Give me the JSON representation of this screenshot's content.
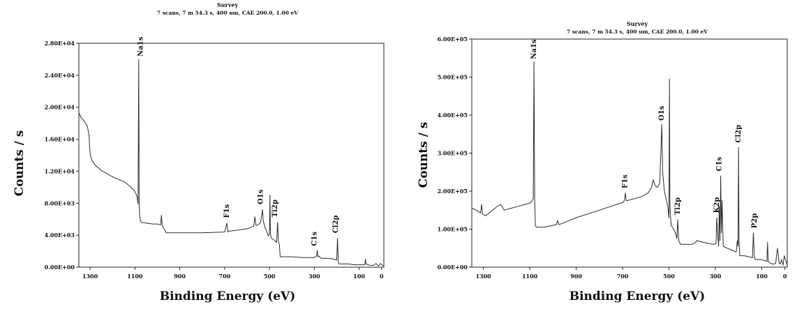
{
  "chart_data": [
    {
      "type": "line",
      "title": "Survey",
      "subtitle": "7 scans, 7 m 54.3 s, 400 um, CAE 200.0, 1.00 eV",
      "xlabel": "Binding Energy (eV)",
      "ylabel": "Counts / s",
      "xlim": [
        1350,
        -10
      ],
      "ylim": [
        0,
        28000
      ],
      "xticks": [
        1300,
        1100,
        900,
        700,
        500,
        300,
        100,
        0
      ],
      "xtick_labels": [
        "1300",
        "1100",
        "900",
        "700",
        "500",
        "300",
        "100",
        "0"
      ],
      "yticks": [
        0,
        4000,
        8000,
        12000,
        16000,
        20000,
        24000,
        28000
      ],
      "ytick_labels": [
        "0.00E+00",
        "4.00E+03",
        "8.00E+03",
        "1.20E+04",
        "1.60E+04",
        "2.00E+04",
        "2.40E+04",
        "2.80E+04"
      ],
      "grid": false,
      "series": [
        {
          "x": [
            1350,
            1340,
            1325,
            1312,
            1305,
            1300,
            1295,
            1288,
            1275,
            1250,
            1225,
            1200,
            1175,
            1150,
            1125,
            1100,
            1090,
            1086,
            1083,
            1081,
            1079,
            1076,
            1070,
            1050,
            1020,
            1000,
            985,
            982,
            978,
            960,
            900,
            800,
            700,
            690,
            686,
            684,
            680,
            650,
            600,
            580,
            570,
            565,
            560,
            550,
            540,
            535,
            531,
            528,
            525,
            520,
            505,
            500,
            498,
            496,
            494,
            490,
            480,
            468,
            464,
            460,
            456,
            452,
            440,
            400,
            350,
            300,
            290,
            287,
            284,
            280,
            270,
            230,
            215,
            205,
            200,
            197,
            193,
            190,
            170,
            150,
            120,
            100,
            75,
            72,
            70,
            60,
            45,
            35,
            25,
            15,
            5,
            -10
          ],
          "y": [
            19300,
            18700,
            18200,
            17600,
            16500,
            14200,
            13600,
            13200,
            12700,
            12100,
            11700,
            11300,
            11000,
            10700,
            10200,
            9500,
            8800,
            7900,
            26000,
            8000,
            6500,
            5800,
            5600,
            5500,
            5400,
            5400,
            5300,
            6500,
            5200,
            4300,
            4300,
            4300,
            4400,
            5500,
            4400,
            4500,
            4500,
            4600,
            4800,
            5000,
            5100,
            6300,
            5200,
            5300,
            5600,
            6500,
            7200,
            5800,
            5500,
            5000,
            3900,
            4200,
            9000,
            4500,
            3800,
            3600,
            3400,
            3100,
            5600,
            3200,
            2800,
            1300,
            1300,
            1300,
            1200,
            1200,
            1400,
            2100,
            1300,
            1400,
            1100,
            1100,
            1000,
            900,
            900,
            3600,
            600,
            400,
            400,
            400,
            300,
            300,
            300,
            1000,
            400,
            300,
            200,
            250,
            450,
            150,
            450,
            100
          ]
        }
      ],
      "annotations": [
        {
          "text": "Na1s",
          "x": 1075,
          "y": 26000
        },
        {
          "text": "F1s",
          "x": 690,
          "y": 5800
        },
        {
          "text": "O1s",
          "x": 540,
          "y": 7500
        },
        {
          "text": "Ti2p",
          "x": 475,
          "y": 5900
        },
        {
          "text": "C1s",
          "x": 300,
          "y": 2300
        },
        {
          "text": "Cl2p",
          "x": 205,
          "y": 3900
        }
      ]
    },
    {
      "type": "line",
      "title": "Survey",
      "subtitle": "7 scans, 7 m 54.3 s, 400 um, CAE 200.0, 1.00 eV",
      "xlabel": "Binding Energy (eV)",
      "ylabel": "Counts / s",
      "xlim": [
        1350,
        -10
      ],
      "ylim": [
        0,
        600000
      ],
      "xticks": [
        1300,
        1100,
        900,
        700,
        500,
        300,
        100,
        0
      ],
      "xtick_labels": [
        "1300",
        "1100",
        "900",
        "700",
        "500",
        "300",
        "100",
        "0"
      ],
      "yticks": [
        0,
        100000,
        200000,
        300000,
        400000,
        500000,
        600000
      ],
      "ytick_labels": [
        "0.00E+00",
        "1.00E+05",
        "2.00E+05",
        "3.00E+05",
        "4.00E+05",
        "5.00E+05",
        "6.00E+05"
      ],
      "grid": false,
      "series": [
        {
          "x": [
            1350,
            1330,
            1312,
            1308,
            1304,
            1290,
            1270,
            1240,
            1225,
            1210,
            1180,
            1150,
            1120,
            1095,
            1085,
            1082,
            1079,
            1076,
            1072,
            1040,
            1000,
            985,
            980,
            975,
            960,
            900,
            800,
            700,
            692,
            688,
            684,
            680,
            620,
            590,
            575,
            568,
            560,
            550,
            540,
            535,
            531,
            527,
            520,
            505,
            500,
            498,
            496,
            493,
            490,
            480,
            472,
            466,
            462,
            458,
            450,
            400,
            385,
            380,
            350,
            310,
            297,
            294,
            291,
            286,
            283,
            280,
            277,
            274,
            271,
            266,
            250,
            230,
            210,
            205,
            202,
            200,
            198,
            195,
            175,
            160,
            140,
            136,
            132,
            128,
            120,
            100,
            78,
            75,
            72,
            62,
            50,
            40,
            32,
            25,
            20,
            15,
            8,
            3,
            -10
          ],
          "y": [
            155000,
            150000,
            142000,
            165000,
            140000,
            135000,
            145000,
            160000,
            165000,
            150000,
            155000,
            160000,
            165000,
            170000,
            180000,
            540000,
            180000,
            110000,
            105000,
            105000,
            110000,
            112000,
            123000,
            112000,
            115000,
            130000,
            150000,
            170000,
            175000,
            195000,
            175000,
            175000,
            185000,
            195000,
            210000,
            230000,
            215000,
            210000,
            220000,
            300000,
            375000,
            250000,
            200000,
            160000,
            130000,
            495000,
            170000,
            130000,
            110000,
            100000,
            90000,
            75000,
            125000,
            70000,
            60000,
            60000,
            65000,
            70000,
            65000,
            60000,
            62000,
            130000,
            95000,
            55000,
            160000,
            70000,
            240000,
            90000,
            175000,
            55000,
            50000,
            45000,
            40000,
            70000,
            55000,
            315000,
            70000,
            30000,
            30000,
            28000,
            25000,
            90000,
            28000,
            20000,
            20000,
            20000,
            15000,
            65000,
            15000,
            10000,
            8000,
            10000,
            50000,
            10000,
            8000,
            20000,
            5000,
            30000,
            5000
          ]
        }
      ],
      "annotations": [
        {
          "text": "Na1s",
          "x": 1082,
          "y": 540000
        },
        {
          "text": "F1s",
          "x": 690,
          "y": 200000
        },
        {
          "text": "O1s",
          "x": 531,
          "y": 378000
        },
        {
          "text": "Ti2p",
          "x": 462,
          "y": 130000
        },
        {
          "text": "K2p",
          "x": 294,
          "y": 135000
        },
        {
          "text": "C1s",
          "x": 283,
          "y": 245000
        },
        {
          "text": "Cl2p",
          "x": 200,
          "y": 320000
        },
        {
          "text": "P2p",
          "x": 132,
          "y": 95000
        }
      ]
    }
  ]
}
